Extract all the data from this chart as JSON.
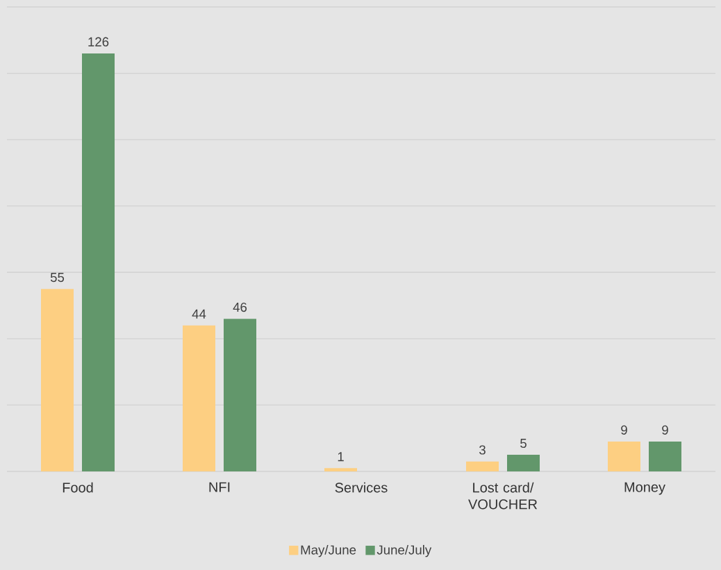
{
  "chart_data": {
    "type": "bar",
    "categories": [
      "Food",
      "NFI",
      "Services",
      "Lost card/ VOUCHER",
      "Money"
    ],
    "series": [
      {
        "name": "May/June",
        "color": "#fdcf82",
        "values": [
          55,
          44,
          1,
          3,
          9
        ]
      },
      {
        "name": "June/July",
        "color": "#62976b",
        "values": [
          126,
          46,
          null,
          5,
          9
        ]
      }
    ],
    "ylim": [
      0,
      140
    ],
    "yticks": [
      {
        "value": 0,
        "label": null
      },
      {
        "value": 20,
        "label": null
      },
      {
        "value": 40,
        "label": null
      },
      {
        "value": 60,
        "label": null
      },
      {
        "value": 80,
        "label": null
      },
      {
        "value": 100,
        "label": null
      },
      {
        "value": 120,
        "label": null
      },
      {
        "value": 140,
        "label": null
      }
    ],
    "tick_labels": "x",
    "grid": "y",
    "data_labels": true,
    "legend": "bottom"
  }
}
